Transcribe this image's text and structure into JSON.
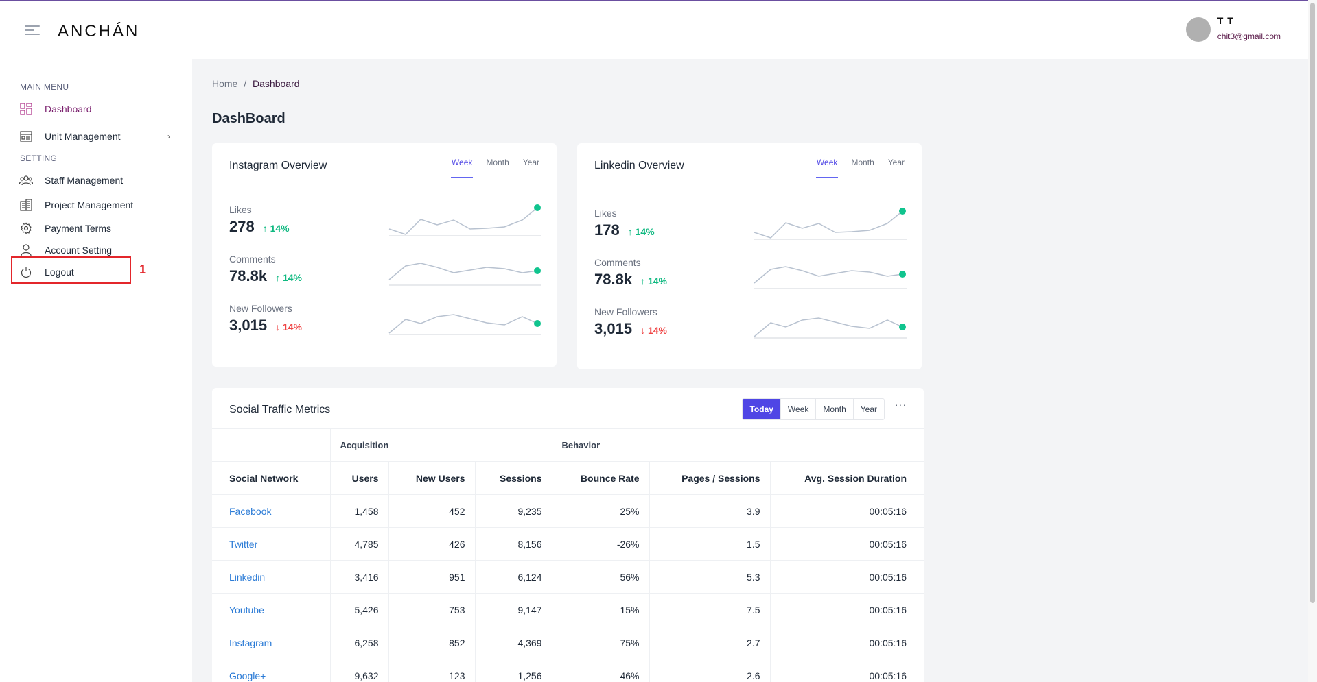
{
  "header": {
    "logo": "ANCHÁN",
    "user_name": "T T",
    "user_email": "chit3@gmail.com"
  },
  "sidebar": {
    "main_menu_title": "MAIN MENU",
    "main_items": [
      {
        "label": "Dashboard",
        "icon": "dashboard-icon",
        "active": true
      },
      {
        "label": "Unit Management",
        "icon": "unit-icon"
      }
    ],
    "setting_title": "SETTING",
    "setting_items": [
      {
        "label": "Staff Management",
        "icon": "users-icon"
      },
      {
        "label": "Project Management",
        "icon": "building-icon"
      },
      {
        "label": "Payment Terms",
        "icon": "gear-icon"
      },
      {
        "label": "Account Setting",
        "icon": "user-icon"
      },
      {
        "label": "Logout",
        "icon": "power-icon"
      }
    ],
    "annotation": "1"
  },
  "breadcrumb": {
    "home": "Home",
    "sep": "/",
    "current": "Dashboard"
  },
  "page_title": "DashBoard",
  "tabs": [
    "Week",
    "Month",
    "Year"
  ],
  "instagram": {
    "title": "Instagram Overview",
    "metrics": [
      {
        "label": "Likes",
        "value": "278",
        "delta": "14%",
        "dir": "up"
      },
      {
        "label": "Comments",
        "value": "78.8k",
        "delta": "14%",
        "dir": "up"
      },
      {
        "label": "New Followers",
        "value": "3,015",
        "delta": "14%",
        "dir": "down"
      }
    ]
  },
  "linkedin": {
    "title": "Linkedin Overview",
    "metrics": [
      {
        "label": "Likes",
        "value": "178",
        "delta": "14%",
        "dir": "up"
      },
      {
        "label": "Comments",
        "value": "78.8k",
        "delta": "14%",
        "dir": "up"
      },
      {
        "label": "New Followers",
        "value": "3,015",
        "delta": "14%",
        "dir": "down"
      }
    ]
  },
  "traffic": {
    "title": "Social Traffic Metrics",
    "ranges": [
      "Today",
      "Week",
      "Month",
      "Year"
    ],
    "more": "···",
    "groups": [
      "Acquisition",
      "Behavior"
    ],
    "columns": [
      "Social Network",
      "Users",
      "New Users",
      "Sessions",
      "Bounce Rate",
      "Pages / Sessions",
      "Avg. Session Duration"
    ],
    "rows": [
      [
        "Facebook",
        "1,458",
        "452",
        "9,235",
        "25%",
        "3.9",
        "00:05:16"
      ],
      [
        "Twitter",
        "4,785",
        "426",
        "8,156",
        "-26%",
        "1.5",
        "00:05:16"
      ],
      [
        "Linkedin",
        "3,416",
        "951",
        "6,124",
        "56%",
        "5.3",
        "00:05:16"
      ],
      [
        "Youtube",
        "5,426",
        "753",
        "9,147",
        "15%",
        "7.5",
        "00:05:16"
      ],
      [
        "Instagram",
        "6,258",
        "852",
        "4,369",
        "75%",
        "2.7",
        "00:05:16"
      ],
      [
        "Google+",
        "9,632",
        "123",
        "1,256",
        "46%",
        "2.6",
        "00:05:16"
      ]
    ]
  }
}
